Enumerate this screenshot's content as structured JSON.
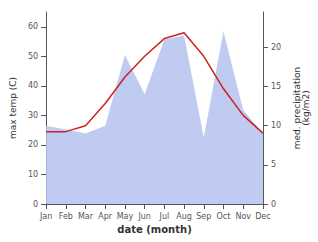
{
  "chart_data": {
    "type": "line",
    "xlabel": "date (month)",
    "ylabel": "max temp (C)",
    "y2label": "med. precipitation\n(kg/m2)",
    "categories": [
      "Jan",
      "Feb",
      "Mar",
      "Apr",
      "May",
      "Jun",
      "Jul",
      "Aug",
      "Sep",
      "Oct",
      "Nov",
      "Dec"
    ],
    "series": [
      {
        "type": "area",
        "color": "#b8c5ee",
        "axis": "y2",
        "values": [
          10,
          9.5,
          9,
          10,
          19,
          14,
          21,
          21.5,
          8.5,
          22,
          12,
          9
        ]
      },
      {
        "type": "line",
        "color": "#cc2222",
        "values": [
          24.5,
          24.5,
          26.5,
          34,
          43,
          50,
          56,
          58,
          50,
          39,
          30,
          24
        ]
      }
    ],
    "ylim": [
      0,
      65
    ],
    "yticks": [
      0,
      10,
      20,
      30,
      40,
      50,
      60
    ],
    "y2lim": [
      0,
      24.5
    ],
    "y2ticks": [
      0,
      5,
      10,
      15,
      20
    ],
    "grid": false
  }
}
